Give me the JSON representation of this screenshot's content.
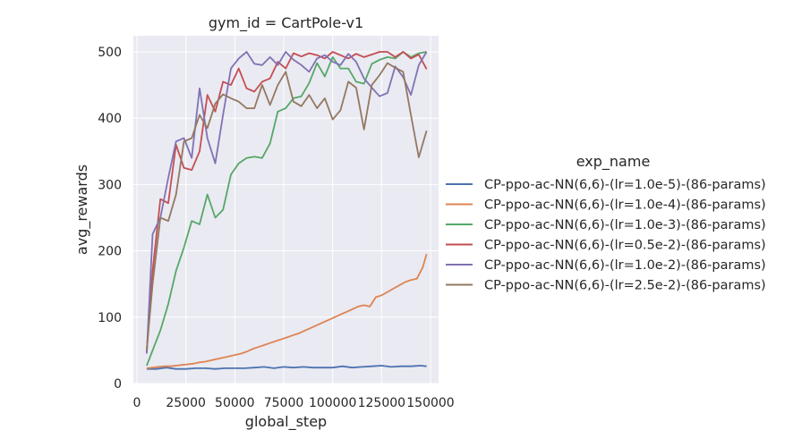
{
  "chart_data": {
    "type": "line",
    "title": "gym_id = CartPole-v1",
    "xlabel": "global_step",
    "ylabel": "avg_rewards",
    "xlim": [
      0,
      150000
    ],
    "ylim": [
      0,
      525
    ],
    "xticks": [
      0,
      25000,
      50000,
      75000,
      100000,
      125000,
      150000
    ],
    "yticks": [
      0,
      100,
      200,
      300,
      400,
      500
    ],
    "grid": true,
    "legend_title": "exp_name",
    "legend_position": "right",
    "series": [
      {
        "name": "CP-ppo-ac-NN(6,6)-(lr=1.0e-5)-(86-params)",
        "color": "#4c72b0",
        "x": [
          5000,
          10000,
          15000,
          20000,
          25000,
          30000,
          35000,
          40000,
          45000,
          50000,
          55000,
          60000,
          65000,
          70000,
          75000,
          80000,
          85000,
          90000,
          95000,
          100000,
          105000,
          110000,
          115000,
          120000,
          125000,
          130000,
          135000,
          140000,
          145000,
          148000
        ],
        "y": [
          22,
          22,
          24,
          22,
          22,
          23,
          23,
          22,
          23,
          23,
          23,
          24,
          25,
          23,
          25,
          24,
          25,
          24,
          24,
          24,
          26,
          24,
          25,
          26,
          27,
          25,
          26,
          26,
          27,
          26
        ]
      },
      {
        "name": "CP-ppo-ac-NN(6,6)-(lr=1.0e-4)-(86-params)",
        "color": "#dd8452",
        "x": [
          5000,
          8000,
          11000,
          14000,
          17000,
          20000,
          23000,
          26000,
          29000,
          32000,
          35000,
          38000,
          41000,
          44000,
          47000,
          50000,
          53000,
          56000,
          59000,
          62000,
          65000,
          68000,
          71000,
          74000,
          77000,
          80000,
          83000,
          86000,
          89000,
          92000,
          95000,
          98000,
          101000,
          104000,
          107000,
          110000,
          113000,
          116000,
          119000,
          122000,
          125000,
          128000,
          131000,
          134000,
          137000,
          140000,
          143000,
          146000,
          148000
        ],
        "y": [
          23,
          24,
          25,
          26,
          26,
          27,
          28,
          29,
          30,
          32,
          33,
          35,
          37,
          39,
          41,
          43,
          45,
          48,
          52,
          55,
          58,
          61,
          64,
          67,
          70,
          73,
          76,
          80,
          84,
          88,
          92,
          96,
          100,
          104,
          108,
          112,
          116,
          118,
          116,
          130,
          133,
          138,
          143,
          148,
          153,
          156,
          158,
          175,
          195
        ]
      },
      {
        "name": "CP-ppo-ac-NN(6,6)-(lr=1.0e-3)-(86-params)",
        "color": "#55a868",
        "x": [
          5000,
          8000,
          12000,
          16000,
          20000,
          24000,
          28000,
          32000,
          36000,
          40000,
          44000,
          48000,
          52000,
          56000,
          60000,
          64000,
          68000,
          72000,
          76000,
          80000,
          84000,
          88000,
          92000,
          96000,
          100000,
          104000,
          108000,
          112000,
          116000,
          120000,
          124000,
          128000,
          132000,
          136000,
          140000,
          144000,
          148000
        ],
        "y": [
          27,
          50,
          80,
          120,
          170,
          205,
          245,
          240,
          285,
          250,
          262,
          315,
          332,
          340,
          342,
          340,
          362,
          410,
          415,
          430,
          433,
          453,
          483,
          463,
          492,
          475,
          475,
          455,
          452,
          482,
          488,
          492,
          490,
          500,
          492,
          498,
          500
        ]
      },
      {
        "name": "CP-ppo-ac-NN(6,6)-(lr=0.5e-2)-(86-params)",
        "color": "#c44e52",
        "x": [
          5000,
          8000,
          12000,
          16000,
          20000,
          24000,
          28000,
          32000,
          36000,
          40000,
          44000,
          48000,
          52000,
          56000,
          60000,
          64000,
          68000,
          72000,
          76000,
          80000,
          84000,
          88000,
          92000,
          96000,
          100000,
          104000,
          108000,
          112000,
          116000,
          120000,
          124000,
          128000,
          132000,
          136000,
          140000,
          144000,
          148000
        ],
        "y": [
          47,
          170,
          278,
          272,
          360,
          325,
          322,
          350,
          435,
          410,
          455,
          450,
          475,
          445,
          440,
          455,
          460,
          485,
          475,
          498,
          493,
          498,
          495,
          490,
          500,
          495,
          490,
          497,
          492,
          496,
          500,
          500,
          492,
          500,
          490,
          496,
          474
        ]
      },
      {
        "name": "CP-ppo-ac-NN(6,6)-(lr=1.0e-2)-(86-params)",
        "color": "#8172b3",
        "x": [
          5000,
          8000,
          12000,
          16000,
          20000,
          24000,
          28000,
          32000,
          36000,
          40000,
          44000,
          48000,
          52000,
          56000,
          60000,
          64000,
          68000,
          72000,
          76000,
          80000,
          84000,
          88000,
          92000,
          96000,
          100000,
          104000,
          108000,
          112000,
          116000,
          120000,
          124000,
          128000,
          132000,
          136000,
          140000,
          144000,
          148000
        ],
        "y": [
          45,
          225,
          250,
          310,
          365,
          370,
          340,
          445,
          370,
          332,
          405,
          475,
          490,
          500,
          482,
          480,
          492,
          480,
          500,
          488,
          480,
          470,
          490,
          495,
          485,
          480,
          497,
          485,
          460,
          446,
          433,
          438,
          478,
          462,
          435,
          480,
          500
        ]
      },
      {
        "name": "CP-ppo-ac-NN(6,6)-(lr=2.5e-2)-(86-params)",
        "color": "#937860",
        "x": [
          5000,
          8000,
          12000,
          16000,
          20000,
          24000,
          28000,
          32000,
          36000,
          40000,
          44000,
          48000,
          52000,
          56000,
          60000,
          64000,
          68000,
          72000,
          76000,
          80000,
          84000,
          88000,
          92000,
          96000,
          100000,
          104000,
          108000,
          112000,
          116000,
          120000,
          124000,
          128000,
          132000,
          136000,
          140000,
          144000,
          148000
        ],
        "y": [
          50,
          150,
          250,
          245,
          285,
          365,
          370,
          405,
          385,
          422,
          436,
          430,
          425,
          415,
          415,
          450,
          420,
          450,
          470,
          425,
          418,
          435,
          415,
          430,
          398,
          412,
          455,
          446,
          383,
          450,
          465,
          483,
          476,
          470,
          405,
          341,
          381
        ]
      }
    ]
  }
}
